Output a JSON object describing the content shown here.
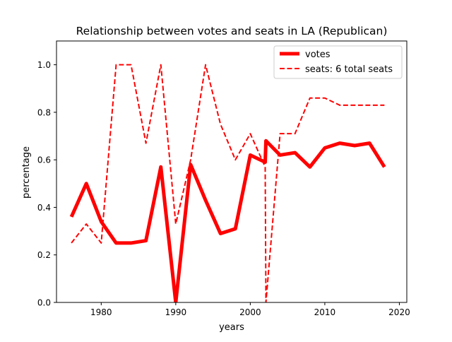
{
  "chart_data": {
    "type": "line",
    "title": "Relationship between votes and seats in LA (Republican)",
    "xlabel": "years",
    "ylabel": "percentage",
    "xlim": [
      1974,
      2021
    ],
    "ylim": [
      0,
      1.1
    ],
    "xticks": [
      1980,
      1990,
      2000,
      2010,
      2020
    ],
    "yticks": [
      0.0,
      0.2,
      0.4,
      0.6,
      0.8,
      1.0
    ],
    "xtick_labels": [
      "1980",
      "1990",
      "2000",
      "2010",
      "2020"
    ],
    "ytick_labels": [
      "0.0",
      "0.2",
      "0.4",
      "0.6",
      "0.8",
      "1.0"
    ],
    "grid": false,
    "legend_position": "top-right",
    "series": [
      {
        "name": "votes",
        "style": "solid-thick",
        "color": "#ff0000",
        "points": [
          [
            1976,
            0.36
          ],
          [
            1978,
            0.5
          ],
          [
            1980,
            0.34
          ],
          [
            1982,
            0.25
          ],
          [
            1984,
            0.25
          ],
          [
            1986,
            0.26
          ],
          [
            1988,
            0.57
          ],
          [
            1990,
            0.0
          ],
          [
            1992,
            0.58
          ],
          [
            1994,
            0.43
          ],
          [
            1996,
            0.29
          ],
          [
            1998,
            0.31
          ],
          [
            2000,
            0.62
          ],
          [
            2002,
            0.59
          ],
          [
            2002.1,
            0.68
          ],
          [
            2004,
            0.62
          ],
          [
            2006,
            0.63
          ],
          [
            2008,
            0.57
          ],
          [
            2010,
            0.65
          ],
          [
            2012,
            0.67
          ],
          [
            2014,
            0.66
          ],
          [
            2016,
            0.67
          ],
          [
            2018,
            0.57
          ]
        ]
      },
      {
        "name": "seats: 6 total seats",
        "style": "dashed",
        "color": "#ff0000",
        "points": [
          [
            1976,
            0.25
          ],
          [
            1978,
            0.33
          ],
          [
            1980,
            0.25
          ],
          [
            1982,
            1.0
          ],
          [
            1984,
            1.0
          ],
          [
            1986,
            0.67
          ],
          [
            1988,
            1.0
          ],
          [
            1990,
            0.33
          ],
          [
            1992,
            0.6
          ],
          [
            1994,
            1.0
          ],
          [
            1996,
            0.75
          ],
          [
            1998,
            0.6
          ],
          [
            2000,
            0.71
          ],
          [
            2002,
            0.57
          ],
          [
            2002.1,
            0.0
          ],
          [
            2004,
            0.71
          ],
          [
            2006,
            0.71
          ],
          [
            2008,
            0.86
          ],
          [
            2010,
            0.86
          ],
          [
            2012,
            0.83
          ],
          [
            2014,
            0.83
          ],
          [
            2016,
            0.83
          ],
          [
            2018,
            0.83
          ]
        ]
      }
    ]
  }
}
